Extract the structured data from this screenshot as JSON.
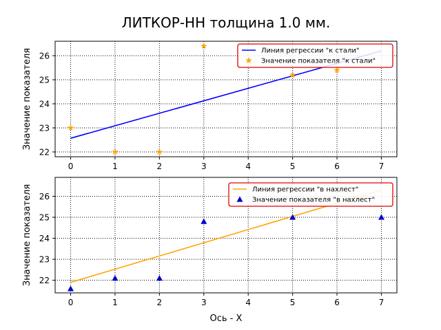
{
  "figure": {
    "title": "ЛИТКОР-НН толщина 1.0 мм."
  },
  "chart_data": [
    {
      "type": "scatter",
      "title": "",
      "xlabel": "",
      "ylabel": "Значение показателя",
      "xlim": [
        -0.35,
        7.35
      ],
      "ylim": [
        21.8,
        26.6
      ],
      "xticks": [
        0,
        1,
        2,
        3,
        4,
        5,
        6,
        7
      ],
      "yticks": [
        22,
        23,
        24,
        25,
        26
      ],
      "grid": true,
      "legend_position": "top-right",
      "series": [
        {
          "name": "Линия регрессии \"к стали\"",
          "kind": "line",
          "color": "#0000ff",
          "x": [
            0,
            7
          ],
          "y": [
            22.57,
            26.2
          ]
        },
        {
          "name": "Значение показателя \"к стали\"",
          "kind": "scatter",
          "marker": "star",
          "color": "#ffa500",
          "x": [
            0,
            1,
            2,
            3,
            5,
            6
          ],
          "y": [
            23.0,
            22.0,
            22.0,
            26.4,
            25.2,
            25.4
          ]
        }
      ]
    },
    {
      "type": "scatter",
      "title": "",
      "xlabel": "Ось - X",
      "ylabel": "Значение показателя",
      "xlim": [
        -0.35,
        7.35
      ],
      "ylim": [
        21.4,
        26.9
      ],
      "xticks": [
        0,
        1,
        2,
        3,
        4,
        5,
        6,
        7
      ],
      "yticks": [
        22,
        23,
        24,
        25,
        26
      ],
      "grid": true,
      "legend_position": "top-right",
      "series": [
        {
          "name": "Линия регрессии \"в нахлест\"",
          "kind": "line",
          "color": "#ffa500",
          "x": [
            0,
            7
          ],
          "y": [
            21.9,
            26.3
          ]
        },
        {
          "name": "Значение показателя \"в нахлест\"",
          "kind": "scatter",
          "marker": "triangle",
          "color": "#0000cc",
          "x": [
            0,
            1,
            2,
            3,
            5,
            7
          ],
          "y": [
            21.6,
            22.1,
            22.1,
            24.8,
            25.0,
            25.0
          ]
        }
      ]
    }
  ]
}
